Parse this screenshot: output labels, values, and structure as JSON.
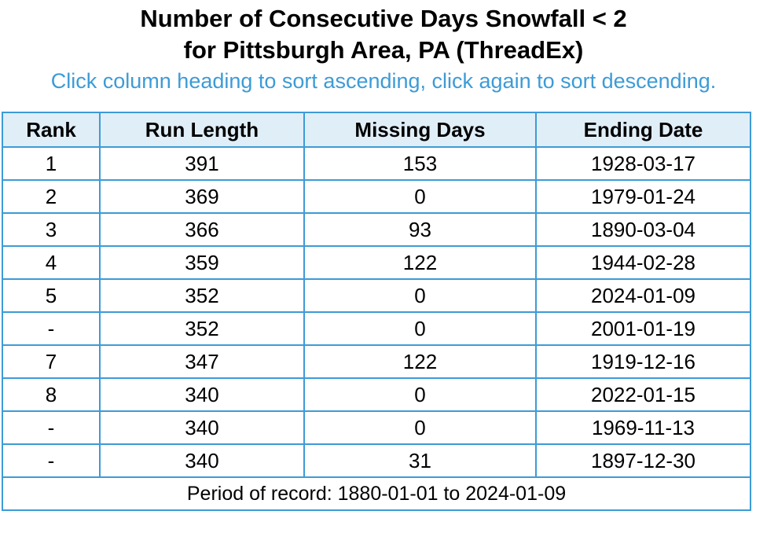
{
  "title_line1": "Number of Consecutive Days Snowfall < 2",
  "title_line2": "for Pittsburgh Area, PA (ThreadEx)",
  "hint": "Click column heading to sort ascending, click again to sort descending.",
  "columns": [
    "Rank",
    "Run Length",
    "Missing Days",
    "Ending Date"
  ],
  "rows": [
    [
      "1",
      "391",
      "153",
      "1928-03-17"
    ],
    [
      "2",
      "369",
      "0",
      "1979-01-24"
    ],
    [
      "3",
      "366",
      "93",
      "1890-03-04"
    ],
    [
      "4",
      "359",
      "122",
      "1944-02-28"
    ],
    [
      "5",
      "352",
      "0",
      "2024-01-09"
    ],
    [
      "-",
      "352",
      "0",
      "2001-01-19"
    ],
    [
      "7",
      "347",
      "122",
      "1919-12-16"
    ],
    [
      "8",
      "340",
      "0",
      "2022-01-15"
    ],
    [
      "-",
      "340",
      "0",
      "1969-11-13"
    ],
    [
      "-",
      "340",
      "31",
      "1897-12-30"
    ]
  ],
  "footer": "Period of record: 1880-01-01 to 2024-01-09"
}
